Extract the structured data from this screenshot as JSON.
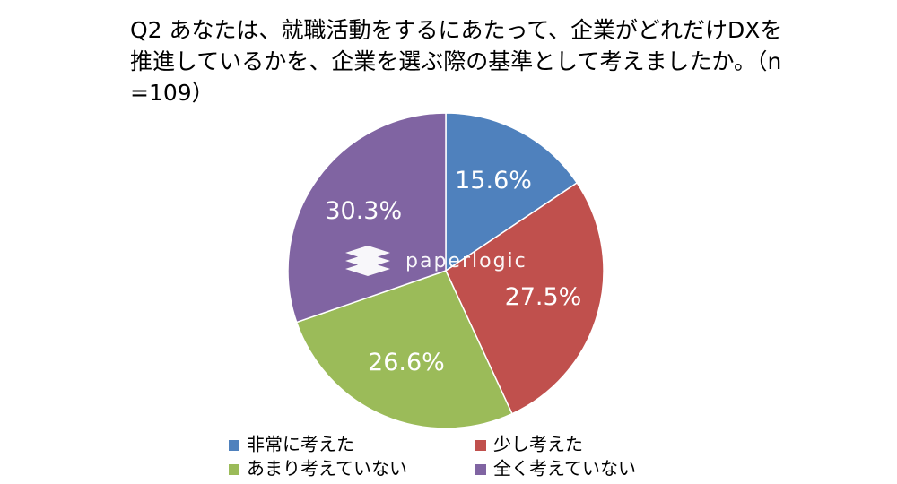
{
  "chart_data": {
    "type": "pie",
    "title": "Q2 あなたは、就職活動をするにあたって、企業がどれだけDXを推進しているかを、企業を選ぶ際の基準として考えましたか。（n=109）",
    "categories": [
      "非常に考えた",
      "少し考えた",
      "あまり考えていない",
      "全く考えていない"
    ],
    "values": [
      15.6,
      27.5,
      26.6,
      30.3
    ],
    "value_labels": [
      "15.6%",
      "27.5%",
      "26.6%",
      "30.3%"
    ],
    "colors": [
      "#4f81bd",
      "#c0504d",
      "#9bbb59",
      "#8064a2"
    ],
    "watermark": "paperlogic"
  }
}
